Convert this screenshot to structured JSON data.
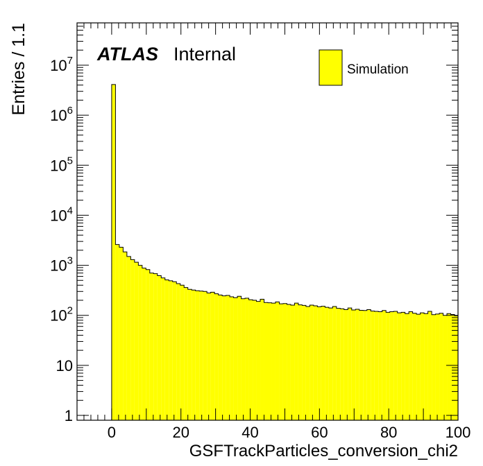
{
  "chart_data": {
    "type": "bar",
    "title": "",
    "xlabel": "GSFTrackParticles_conversion_chi2",
    "ylabel": "Entries / 1.1",
    "xlim": [
      -10,
      100
    ],
    "ylim": [
      0.8,
      70000000
    ],
    "yscale": "log",
    "grid": false,
    "legend_position": "top-right",
    "x_ticks": [
      {
        "value": 0,
        "label": "0"
      },
      {
        "value": 20,
        "label": "20"
      },
      {
        "value": 40,
        "label": "40"
      },
      {
        "value": 60,
        "label": "60"
      },
      {
        "value": 80,
        "label": "80"
      },
      {
        "value": 100,
        "label": "100"
      }
    ],
    "y_ticks": [
      {
        "value": 1,
        "base": "1",
        "exp": ""
      },
      {
        "value": 10,
        "base": "10",
        "exp": ""
      },
      {
        "value": 100,
        "base": "10",
        "exp": "2"
      },
      {
        "value": 1000,
        "base": "10",
        "exp": "3"
      },
      {
        "value": 10000,
        "base": "10",
        "exp": "4"
      },
      {
        "value": 100000,
        "base": "10",
        "exp": "5"
      },
      {
        "value": 1000000,
        "base": "10",
        "exp": "6"
      },
      {
        "value": 10000000,
        "base": "10",
        "exp": "7"
      }
    ],
    "bin_start": 0,
    "bin_width": 1.1,
    "series": [
      {
        "name": "Simulation",
        "color": "#ffff00",
        "values": [
          4100000,
          2600,
          2300,
          1850,
          1500,
          1300,
          1150,
          1000,
          880,
          820,
          700,
          680,
          620,
          560,
          510,
          490,
          470,
          430,
          400,
          360,
          330,
          320,
          310,
          305,
          300,
          280,
          290,
          270,
          255,
          245,
          250,
          235,
          225,
          240,
          215,
          220,
          205,
          200,
          190,
          210,
          180,
          178,
          175,
          185,
          170,
          172,
          165,
          160,
          175,
          162,
          158,
          150,
          160,
          155,
          148,
          152,
          145,
          140,
          150,
          138,
          135,
          130,
          140,
          128,
          132,
          126,
          125,
          130,
          122,
          120,
          118,
          125,
          115,
          118,
          120,
          112,
          115,
          108,
          118,
          110,
          105,
          112,
          108,
          120,
          103,
          106,
          110,
          100,
          108,
          104,
          98,
          106,
          100,
          96,
          104
        ]
      }
    ]
  },
  "labels": {
    "atlas": "ATLAS",
    "internal": "Internal"
  },
  "legend": {
    "entries": [
      {
        "label": "Simulation",
        "color": "#ffff00"
      }
    ]
  }
}
